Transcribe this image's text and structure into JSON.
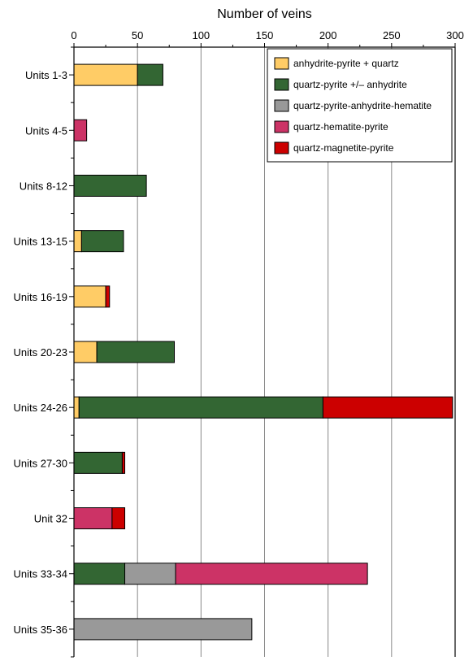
{
  "chart_data": {
    "type": "bar",
    "orientation": "horizontal",
    "stacked": true,
    "xlabel": "Number of veins",
    "xlabel_position": "top",
    "xlim": [
      0,
      300
    ],
    "xticks": [
      0,
      50,
      100,
      150,
      200,
      250,
      300
    ],
    "grid": "vertical",
    "legend_position": "top-right",
    "categories": [
      "Units 1-3",
      "Units 4-5",
      "Units 8-12",
      "Units 13-15",
      "Units 16-19",
      "Units 20-23",
      "Units 24-26",
      "Units 27-30",
      "Unit 32",
      "Units 33-34",
      "Units 35-36"
    ],
    "series": [
      {
        "name": "anhydrite-pyrite + quartz",
        "color": "#ffcc66",
        "values": [
          50,
          0,
          0,
          6,
          25,
          18,
          4,
          0,
          0,
          0,
          0
        ]
      },
      {
        "name": "quartz-pyrite +/– anhydrite",
        "color": "#336633",
        "values": [
          20,
          0,
          57,
          33,
          0,
          61,
          192,
          38,
          0,
          40,
          0
        ]
      },
      {
        "name": "quartz-pyrite-anhydrite-hematite",
        "color": "#999999",
        "values": [
          0,
          0,
          0,
          0,
          0,
          0,
          0,
          0,
          0,
          40,
          140
        ]
      },
      {
        "name": "quartz-hematite-pyrite",
        "color": "#cc3366",
        "values": [
          0,
          10,
          0,
          0,
          0,
          0,
          0,
          0,
          30,
          151,
          0
        ]
      },
      {
        "name": "quartz-magnetite-pyrite",
        "color": "#cc0000",
        "values": [
          0,
          0,
          0,
          0,
          3,
          0,
          102,
          2,
          10,
          0,
          0
        ]
      }
    ]
  }
}
